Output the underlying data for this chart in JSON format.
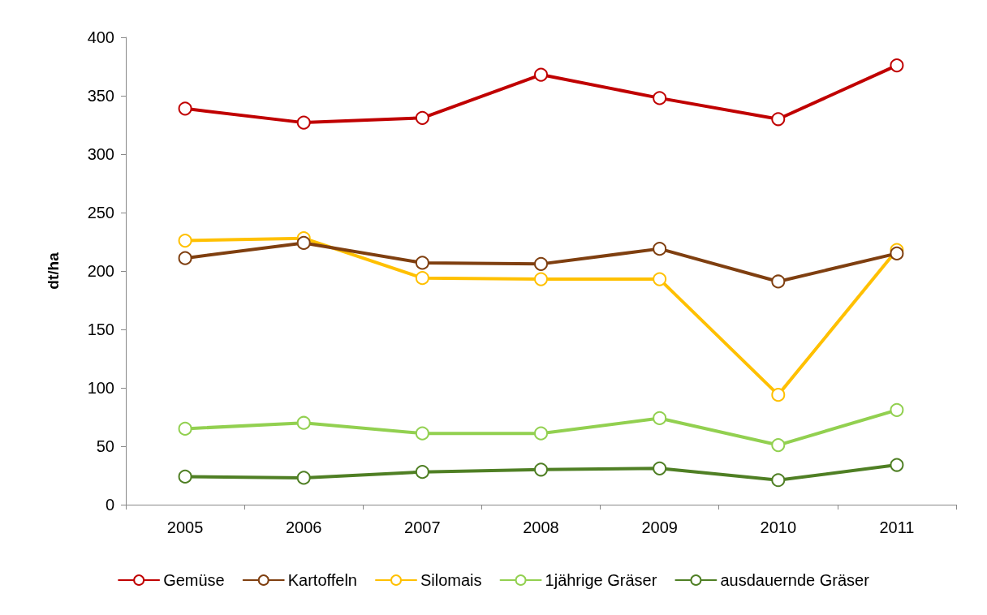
{
  "chart_data": {
    "type": "line",
    "ylabel": "dt/ha",
    "categories": [
      "2005",
      "2006",
      "2007",
      "2008",
      "2009",
      "2010",
      "2011"
    ],
    "series": [
      {
        "name": "Gemüse",
        "color": "#c00000",
        "values": [
          339,
          327,
          331,
          368,
          348,
          330,
          376
        ]
      },
      {
        "name": "Kartoffeln",
        "color": "#7f3f10",
        "values": [
          211,
          224,
          207,
          206,
          219,
          191,
          215
        ]
      },
      {
        "name": "Silomais",
        "color": "#ffc000",
        "values": [
          226,
          228,
          194,
          193,
          193,
          94,
          218
        ]
      },
      {
        "name": "1jährige Gräser",
        "color": "#92d050",
        "values": [
          65,
          70,
          61,
          61,
          74,
          51,
          81
        ]
      },
      {
        "name": "ausdauernde Gräser",
        "color": "#4f7f24",
        "values": [
          24,
          23,
          28,
          30,
          31,
          21,
          34
        ]
      }
    ],
    "ylim": [
      0,
      400
    ],
    "yticks": [
      0,
      50,
      100,
      150,
      200,
      250,
      300,
      350,
      400
    ],
    "grid": false,
    "legend": "bottom",
    "marker": "circle",
    "line_style": "solid"
  }
}
